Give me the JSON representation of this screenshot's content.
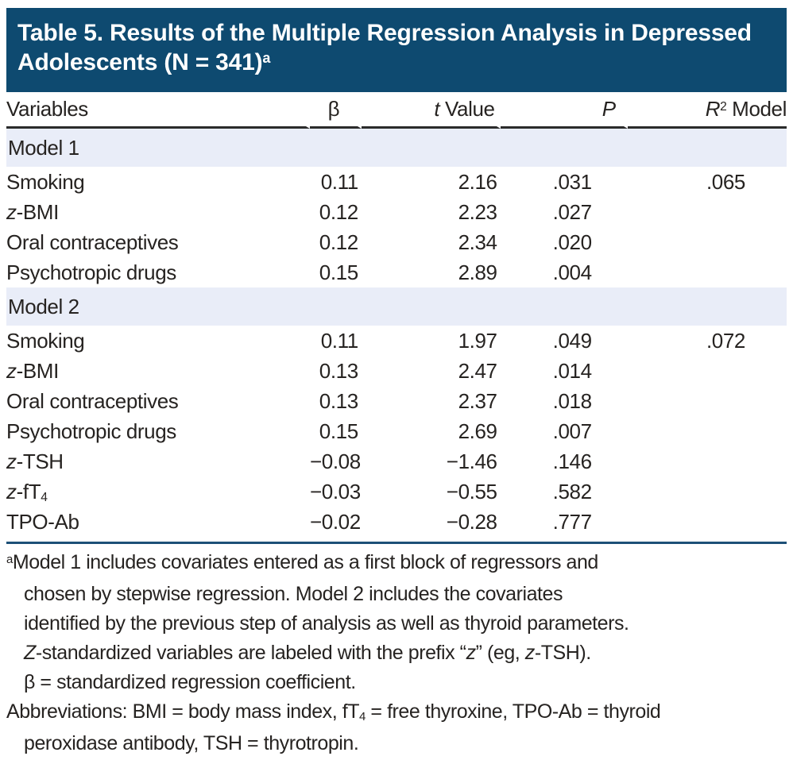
{
  "title": {
    "segments": [
      {
        "t": "Table 5. Results of the Multiple Regression Analysis in Depressed Adolescents (N = 341)"
      },
      {
        "t": "a",
        "sup": true
      }
    ]
  },
  "table": {
    "columns": [
      {
        "name": "variables",
        "segs": [
          {
            "t": "Variables"
          }
        ]
      },
      {
        "name": "beta",
        "segs": [
          {
            "t": "β"
          }
        ]
      },
      {
        "name": "t_value",
        "segs": [
          {
            "t": "t",
            "i": true
          },
          {
            "t": " Value"
          }
        ]
      },
      {
        "name": "p",
        "segs": [
          {
            "t": "P",
            "i": true
          }
        ]
      },
      {
        "name": "r2_model",
        "segs": [
          {
            "t": "R",
            "i": true
          },
          {
            "t": "2",
            "sup": true
          },
          {
            "t": " Model"
          }
        ]
      }
    ],
    "sections": [
      {
        "label": "Model 1",
        "rows": [
          {
            "variable": [
              {
                "t": "Smoking"
              }
            ],
            "beta": "0.11",
            "t": "2.16",
            "p": ".031",
            "r2": ".065"
          },
          {
            "variable": [
              {
                "t": "z",
                "i": true
              },
              {
                "t": "-BMI"
              }
            ],
            "beta": "0.12",
            "t": "2.23",
            "p": ".027",
            "r2": ""
          },
          {
            "variable": [
              {
                "t": "Oral contraceptives"
              }
            ],
            "beta": "0.12",
            "t": "2.34",
            "p": ".020",
            "r2": ""
          },
          {
            "variable": [
              {
                "t": "Psychotropic drugs"
              }
            ],
            "beta": "0.15",
            "t": "2.89",
            "p": ".004",
            "r2": ""
          }
        ]
      },
      {
        "label": "Model 2",
        "rows": [
          {
            "variable": [
              {
                "t": "Smoking"
              }
            ],
            "beta": "0.11",
            "t": "1.97",
            "p": ".049",
            "r2": ".072"
          },
          {
            "variable": [
              {
                "t": "z",
                "i": true
              },
              {
                "t": "-BMI"
              }
            ],
            "beta": "0.13",
            "t": "2.47",
            "p": ".014",
            "r2": ""
          },
          {
            "variable": [
              {
                "t": "Oral contraceptives"
              }
            ],
            "beta": "0.13",
            "t": "2.37",
            "p": ".018",
            "r2": ""
          },
          {
            "variable": [
              {
                "t": "Psychotropic drugs"
              }
            ],
            "beta": "0.15",
            "t": "2.69",
            "p": ".007",
            "r2": ""
          },
          {
            "variable": [
              {
                "t": "z",
                "i": true
              },
              {
                "t": "-TSH"
              }
            ],
            "beta": "−0.08",
            "t": "−1.46",
            "p": ".146",
            "r2": ""
          },
          {
            "variable": [
              {
                "t": "z",
                "i": true
              },
              {
                "t": "-fT"
              },
              {
                "t": "4",
                "sub": true
              }
            ],
            "beta": "−0.03",
            "t": "−0.55",
            "p": ".582",
            "r2": ""
          },
          {
            "variable": [
              {
                "t": "TPO-Ab"
              }
            ],
            "beta": "−0.02",
            "t": "−0.28",
            "p": ".777",
            "r2": ""
          }
        ]
      }
    ]
  },
  "footnotes": {
    "lines": [
      {
        "segs": [
          {
            "t": "a",
            "sup": true
          },
          {
            "t": "Model 1 includes covariates entered as a first block of regressors and"
          }
        ]
      },
      {
        "segs": [
          {
            "t": "chosen by stepwise regression. Model 2 includes the covariates"
          }
        ]
      },
      {
        "segs": [
          {
            "t": "identified by the previous step of analysis as well as thyroid parameters."
          }
        ]
      },
      {
        "segs": [
          {
            "t": "Z",
            "i": true
          },
          {
            "t": "-standardized variables are labeled with the prefix “"
          },
          {
            "t": "z",
            "i": true
          },
          {
            "t": "” (eg, "
          },
          {
            "t": "z",
            "i": true
          },
          {
            "t": "-TSH)."
          }
        ]
      },
      {
        "segs": [
          {
            "t": "β = standardized regression coefficient."
          }
        ]
      },
      {
        "segs": [
          {
            "t": "Abbreviations: BMI = body mass index, fT"
          },
          {
            "t": "4",
            "sub": true
          },
          {
            "t": " = free thyroxine, TPO-Ab = thyroid"
          }
        ]
      },
      {
        "segs": [
          {
            "t": "peroxidase antibody, TSH = thyrotropin."
          }
        ]
      }
    ]
  },
  "colors": {
    "header_bg": "#0e4a70",
    "band_bg": "#e9edf8",
    "rule_blue": "#1d5077",
    "rule_dark": "#2b2b2b",
    "text": "#262321",
    "title_text": "#ffffff"
  }
}
